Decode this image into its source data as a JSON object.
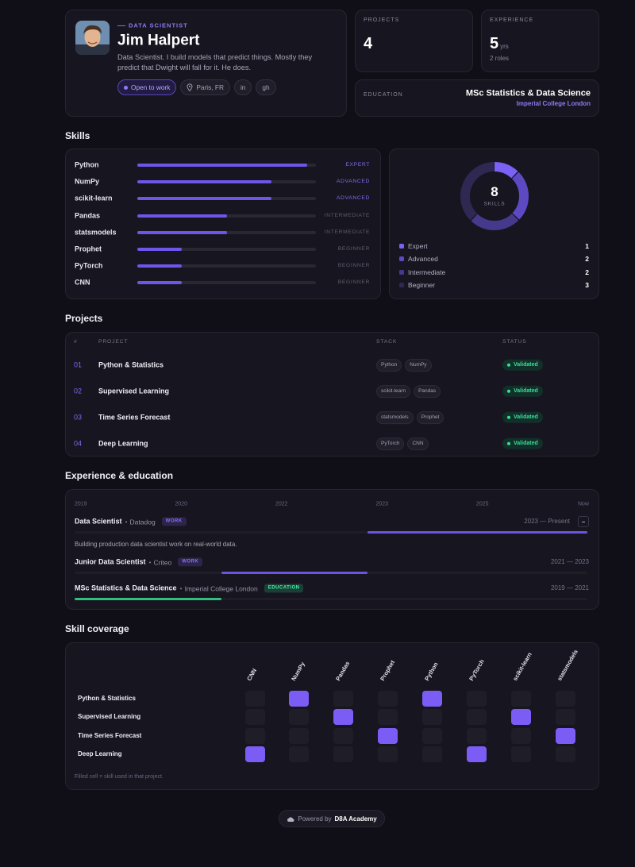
{
  "profile": {
    "role": "DATA SCIENTIST",
    "name": "Jim Halpert",
    "bio": "Data Scientist. I build models that predict things. Mostly they predict that Dwight will fall for it. He does.",
    "badges": [
      "Open to work",
      "Paris, FR",
      "in",
      "gh"
    ]
  },
  "stats": [
    {
      "label": "PROJECTS",
      "value": 4
    },
    {
      "label": "EXPERIENCE",
      "value": 5,
      "unit": "yrs",
      "note": "2 roles"
    }
  ],
  "education": {
    "label": "EDUCATION",
    "degree": "MSc Statistics & Data Science",
    "school": "Imperial College London"
  },
  "skills": {
    "title": "Skills",
    "items": [
      {
        "name": "Python",
        "level": "EXPERT",
        "proficiency": 95,
        "color": "#7c6cf0"
      },
      {
        "name": "NumPy",
        "level": "ADVANCED",
        "proficiency": 75,
        "color": "#7c6cf0"
      },
      {
        "name": "scikit-learn",
        "level": "ADVANCED",
        "proficiency": 75,
        "color": "#7c6cf0"
      },
      {
        "name": "Pandas",
        "level": "INTERMEDIATE",
        "proficiency": 50,
        "color": "#5f5a70"
      },
      {
        "name": "statsmodels",
        "level": "INTERMEDIATE",
        "proficiency": 50,
        "color": "#5f5a70"
      },
      {
        "name": "Prophet",
        "level": "BEGINNER",
        "proficiency": 25,
        "color": "#5f5a70"
      },
      {
        "name": "PyTorch",
        "level": "BEGINNER",
        "proficiency": 25,
        "color": "#5f5a70"
      },
      {
        "name": "CNN",
        "level": "BEGINNER",
        "proficiency": 25,
        "color": "#5f5a70"
      }
    ],
    "summary": {
      "total": 8,
      "label": "SKILLS",
      "levels": [
        {
          "name": "Expert",
          "count": 1,
          "color": "#7b61f5"
        },
        {
          "name": "Advanced",
          "count": 2,
          "color": "#5d49c2"
        },
        {
          "name": "Intermediate",
          "count": 2,
          "color": "#44398a"
        },
        {
          "name": "Beginner",
          "count": 3,
          "color": "#2e2852"
        }
      ]
    }
  },
  "projects": {
    "title": "Projects",
    "columns": [
      "#",
      "PROJECT",
      "STACK",
      "STATUS"
    ],
    "rows": [
      {
        "id": "01",
        "name": "Python & Statistics",
        "stack": [
          "Python",
          "NumPy"
        ],
        "status": "Validated"
      },
      {
        "id": "02",
        "name": "Supervised Learning",
        "stack": [
          "scikit-learn",
          "Pandas"
        ],
        "status": "Validated"
      },
      {
        "id": "03",
        "name": "Time Series Forecast",
        "stack": [
          "statsmodels",
          "Prophet"
        ],
        "status": "Validated"
      },
      {
        "id": "04",
        "name": "Deep Learning",
        "stack": [
          "PyTorch",
          "CNN"
        ],
        "status": "Validated"
      }
    ]
  },
  "experience": {
    "title": "Experience & education",
    "axis": [
      "2019",
      "2020",
      "2022",
      "2023",
      "2025",
      "Now"
    ],
    "range": [
      2019,
      2026
    ],
    "entries": [
      {
        "role": "Data Scientist",
        "org": "Datadog",
        "kind": "WORK",
        "period": "2023 — Present",
        "description": "Building production data scientist work on real-world data.",
        "start": 2023,
        "end": 2026,
        "color": "#6a55e0"
      },
      {
        "role": "Junior Data Scientist",
        "org": "Criteo",
        "kind": "WORK",
        "period": "2021 — 2023",
        "start": 2021,
        "end": 2023,
        "color": "#6a55e0"
      },
      {
        "role": "MSc Statistics & Data Science",
        "org": "Imperial College London",
        "kind": "EDUCATION",
        "period": "2019 — 2021",
        "start": 2019,
        "end": 2021,
        "color": "#2fbf7f"
      }
    ]
  },
  "coverage": {
    "title": "Skill coverage",
    "color": "#7b5cf5",
    "columns": [
      "CNN",
      "NumPy",
      "Pandas",
      "Prophet",
      "Python",
      "PyTorch",
      "scikit-learn",
      "statsmodels"
    ],
    "rows": [
      "Python & Statistics",
      "Supervised Learning",
      "Time Series Forecast",
      "Deep Learning"
    ],
    "matrix": [
      [
        0,
        1,
        0,
        0,
        1,
        0,
        0,
        0
      ],
      [
        0,
        0,
        1,
        0,
        0,
        0,
        1,
        0
      ],
      [
        0,
        0,
        0,
        1,
        0,
        0,
        0,
        1
      ],
      [
        1,
        0,
        0,
        0,
        0,
        1,
        0,
        0
      ]
    ],
    "note": "Filled cell = skill used in that project."
  },
  "footer": {
    "prefix": "Powered by",
    "brand": "D8A Academy"
  }
}
